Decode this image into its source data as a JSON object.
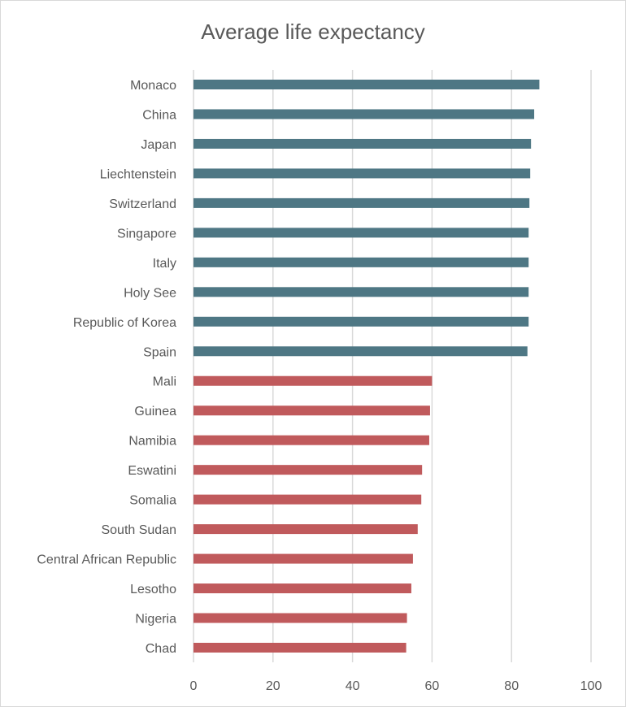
{
  "chart_data": {
    "type": "bar",
    "orientation": "horizontal",
    "title": "Average life expectancy",
    "categories": [
      "Monaco",
      "China",
      "Japan",
      "Liechtenstein",
      "Switzerland",
      "Singapore",
      "Italy",
      "Holy See",
      "Republic of Korea",
      "Spain",
      "Mali",
      "Guinea",
      "Namibia",
      "Eswatini",
      "Somalia",
      "South Sudan",
      "Central African Republic",
      "Lesotho",
      "Nigeria",
      "Chad"
    ],
    "values": [
      87.0,
      85.7,
      84.9,
      84.7,
      84.5,
      84.3,
      84.3,
      84.3,
      84.3,
      84.0,
      60.0,
      59.5,
      59.3,
      57.5,
      57.3,
      56.4,
      55.2,
      54.8,
      53.7,
      53.5
    ],
    "bar_colors": [
      "#4e7784",
      "#4e7784",
      "#4e7784",
      "#4e7784",
      "#4e7784",
      "#4e7784",
      "#4e7784",
      "#4e7784",
      "#4e7784",
      "#4e7784",
      "#c05a5c",
      "#c05a5c",
      "#c05a5c",
      "#c05a5c",
      "#c05a5c",
      "#c05a5c",
      "#c05a5c",
      "#c05a5c",
      "#c05a5c",
      "#c05a5c"
    ],
    "xlim": [
      0,
      100
    ],
    "xticks": [
      "0",
      "20",
      "40",
      "60",
      "80",
      "100"
    ],
    "xlabel": "",
    "ylabel": "",
    "grid": "vertical",
    "legend": "none"
  }
}
